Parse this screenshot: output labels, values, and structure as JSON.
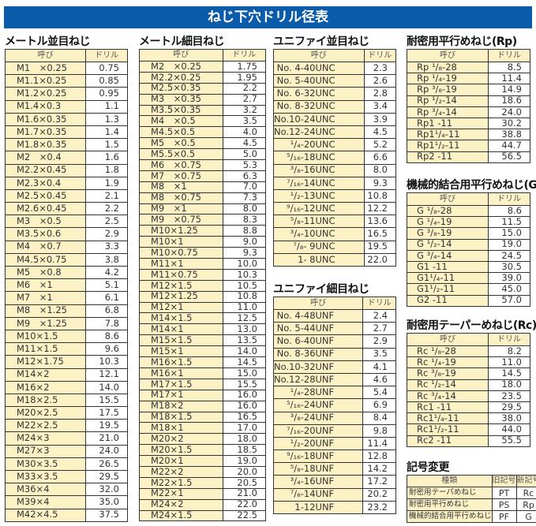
{
  "title": "ねじ下穴ドリル径表",
  "header": {
    "name": "呼び",
    "drill": "ドリル"
  },
  "tables": [
    {
      "id": "metric-coarse",
      "title": "メートル並目ねじ",
      "rows": [
        [
          "M1　×0.25",
          "0.75"
        ],
        [
          "M1.1×0.25",
          "0.85"
        ],
        [
          "M1.2×0.25",
          "0.95"
        ],
        [
          "M1.4×0.3",
          "1.1"
        ],
        [
          "M1.6×0.35",
          "1.3"
        ],
        [
          "M1.7×0.35",
          "1.4"
        ],
        [
          "M1.8×0.35",
          "1.5"
        ],
        [
          "M2　×0.4",
          "1.6"
        ],
        [
          "M2.2×0.45",
          "1.8"
        ],
        [
          "M2.3×0.4",
          "1.9"
        ],
        [
          "M2.5×0.45",
          "2.1"
        ],
        [
          "M2.6×0.45",
          "2.2"
        ],
        [
          "M3　×0.5",
          "2.5"
        ],
        [
          "M3.5×0.6",
          "2.9"
        ],
        [
          "M4　×0.7",
          "3.3"
        ],
        [
          "M4.5×0.75",
          "3.8"
        ],
        [
          "M5　×0.8",
          "4.2"
        ],
        [
          "M6　×1",
          "5.1"
        ],
        [
          "M7　×1",
          "6.1"
        ],
        [
          "M8　×1.25",
          "6.8"
        ],
        [
          "M9　×1.25",
          "7.8"
        ],
        [
          "M10×1.5",
          "8.6"
        ],
        [
          "M11×1.5",
          "9.6"
        ],
        [
          "M12×1.75",
          "10.3"
        ],
        [
          "M14×2",
          "12.1"
        ],
        [
          "M16×2",
          "14.0"
        ],
        [
          "M18×2.5",
          "15.5"
        ],
        [
          "M20×2.5",
          "17.5"
        ],
        [
          "M22×2.5",
          "19.5"
        ],
        [
          "M24×3",
          "21.0"
        ],
        [
          "M27×3",
          "24.0"
        ],
        [
          "M30×3.5",
          "26.5"
        ],
        [
          "M33×3.5",
          "29.5"
        ],
        [
          "M36×4",
          "32.0"
        ],
        [
          "M39×4",
          "35.0"
        ],
        [
          "M42×4.5",
          "37.5"
        ]
      ]
    },
    {
      "id": "metric-fine",
      "title": "メートル細目ねじ",
      "rows": [
        [
          "M2　×0.25",
          "1.75"
        ],
        [
          "M2.2×0.25",
          "1.95"
        ],
        [
          "M2.5×0.35",
          "2.2"
        ],
        [
          "M3　×0.35",
          "2.7"
        ],
        [
          "M3.5×0.35",
          "3.2"
        ],
        [
          "M4　×0.5",
          "3.5"
        ],
        [
          "M4.5×0.5",
          "4.0"
        ],
        [
          "M5　×0.5",
          "4.5"
        ],
        [
          "M5.5×0.5",
          "5.0"
        ],
        [
          "M6　×0.75",
          "5.3"
        ],
        [
          "M7　×0.75",
          "6.3"
        ],
        [
          "M8　×1",
          "7.0"
        ],
        [
          "M8　×0.75",
          "7.3"
        ],
        [
          "M9　×1",
          "8.0"
        ],
        [
          "M9　×0.75",
          "8.3"
        ],
        [
          "M10×1.25",
          "8.8"
        ],
        [
          "M10×1",
          "9.0"
        ],
        [
          "M10×0.75",
          "9.3"
        ],
        [
          "M11×1",
          "10.0"
        ],
        [
          "M11×0.75",
          "10.3"
        ],
        [
          "M12×1.5",
          "10.5"
        ],
        [
          "M12×1.25",
          "10.8"
        ],
        [
          "M12×1",
          "11.0"
        ],
        [
          "M14×1.5",
          "12.5"
        ],
        [
          "M14×1",
          "13.0"
        ],
        [
          "M15×1.5",
          "13.5"
        ],
        [
          "M15×1",
          "14.0"
        ],
        [
          "M16×1.5",
          "14.5"
        ],
        [
          "M16×1",
          "15.0"
        ],
        [
          "M17×1.5",
          "15.5"
        ],
        [
          "M17×1",
          "16.0"
        ],
        [
          "M18×2",
          "16.0"
        ],
        [
          "M18×1.5",
          "16.5"
        ],
        [
          "M18×1",
          "17.0"
        ],
        [
          "M20×2",
          "18.0"
        ],
        [
          "M20×1.5",
          "18.5"
        ],
        [
          "M20×1",
          "19.0"
        ],
        [
          "M22×2",
          "20.0"
        ],
        [
          "M22×1.5",
          "20.5"
        ],
        [
          "M22×1",
          "21.0"
        ],
        [
          "M24×2",
          "22.0"
        ],
        [
          "M24×1.5",
          "22.5"
        ]
      ]
    },
    {
      "id": "unc",
      "title": "ユニファイ並目ねじ",
      "rows": [
        [
          "No.  4-40UNC",
          "2.3"
        ],
        [
          "No.  5-40UNC",
          "2.6"
        ],
        [
          "No.  6-32UNC",
          "2.8"
        ],
        [
          "No.  8-32UNC",
          "3.4"
        ],
        [
          "No.10-24UNC",
          "3.9"
        ],
        [
          "No.12-24UNC",
          "4.5"
        ],
        [
          "¹/₄-20UNC",
          "5.2"
        ],
        [
          "⁵/₁₆-18UNC",
          "6.6"
        ],
        [
          "³/₈-16UNC",
          "8.0"
        ],
        [
          "⁷/₁₆-14UNC",
          "9.3"
        ],
        [
          "¹/₂-13UNC",
          "10.8"
        ],
        [
          "⁹/₁₆-12UNC",
          "12.2"
        ],
        [
          "⁵/₈-11UNC",
          "13.6"
        ],
        [
          "³/₄-10UNC",
          "16.5"
        ],
        [
          "⁷/₈- 9UNC",
          "19.5"
        ],
        [
          "1- 8UNC",
          "22.0"
        ]
      ]
    },
    {
      "id": "unf",
      "title": "ユニファイ細目ねじ",
      "rows": [
        [
          "No.  4-48UNF",
          "2.4"
        ],
        [
          "No.  5-44UNF",
          "2.7"
        ],
        [
          "No.  6-40UNF",
          "2.9"
        ],
        [
          "No.  8-36UNF",
          "3.5"
        ],
        [
          "No.10-32UNF",
          "4.1"
        ],
        [
          "No.12-28UNF",
          "4.6"
        ],
        [
          "¹/₄-28UNF",
          "5.4"
        ],
        [
          "⁵/₁₆-24UNF",
          "6.9"
        ],
        [
          "³/₈-24UNF",
          "8.4"
        ],
        [
          "⁷/₁₆-20UNF",
          "9.8"
        ],
        [
          "¹/₂-20UNF",
          "11.4"
        ],
        [
          "⁹/₁₆-18UNF",
          "12.8"
        ],
        [
          "⁵/₈-18UNF",
          "14.2"
        ],
        [
          "³/₄-16UNF",
          "17.2"
        ],
        [
          "⁷/₈-14UNF",
          "20.2"
        ],
        [
          "1-12UNF",
          "23.2"
        ]
      ]
    },
    {
      "id": "rp",
      "title": "耐密用平行めねじ(Rp)",
      "rows": [
        [
          "Rp  ¹/₈-28",
          "8.5"
        ],
        [
          "Rp  ¹/₄-19",
          "11.4"
        ],
        [
          "Rp  ³/₈-19",
          "14.9"
        ],
        [
          "Rp  ¹/₂-14",
          "18.6"
        ],
        [
          "Rp  ³/₄-14",
          "24.0"
        ],
        [
          "Rp1    -11",
          "30.2"
        ],
        [
          "Rp1¹/₄-11",
          "38.8"
        ],
        [
          "Rp1¹/₂-11",
          "44.7"
        ],
        [
          "Rp2    -11",
          "56.5"
        ]
      ]
    },
    {
      "id": "g",
      "title": "機械的結合用平行めねじ(G)",
      "rows": [
        [
          "G  ¹/₈-28",
          "8.6"
        ],
        [
          "G  ¹/₄-19",
          "11.5"
        ],
        [
          "G  ³/₈-19",
          "15.0"
        ],
        [
          "G  ¹/₂-14",
          "19.0"
        ],
        [
          "G  ³/₄-14",
          "24.5"
        ],
        [
          "G1    -11",
          "30.5"
        ],
        [
          "G1¹/₄-11",
          "39.0"
        ],
        [
          "G1¹/₂-11",
          "45.0"
        ],
        [
          "G2    -11",
          "57.0"
        ]
      ]
    },
    {
      "id": "rc",
      "title": "耐密用テーパーめねじ(Rc)",
      "rows": [
        [
          "Rc  ¹/₈-28",
          "8.2"
        ],
        [
          "Rc  ¹/₄-19",
          "11.0"
        ],
        [
          "Rc  ³/₈-19",
          "14.5"
        ],
        [
          "Rc  ¹/₂-14",
          "18.0"
        ],
        [
          "Rc  ³/₄-14",
          "23.5"
        ],
        [
          "Rc1    -11",
          "29.5"
        ],
        [
          "Rc1¹/₄-11",
          "38.0"
        ],
        [
          "Rc1¹/₂-11",
          "44.0"
        ],
        [
          "Rc2    -11",
          "55.5"
        ]
      ]
    }
  ],
  "symbols": {
    "title": "記号変更",
    "header": [
      "種類",
      "旧記号",
      "新記号"
    ],
    "rows": [
      [
        "耐密用テーパめねじ",
        "PT",
        "Rc"
      ],
      [
        "耐密用平行めねじ",
        "PS",
        "Rp"
      ],
      [
        "機械的結合用平行めねじ",
        "PF",
        "G"
      ]
    ]
  }
}
